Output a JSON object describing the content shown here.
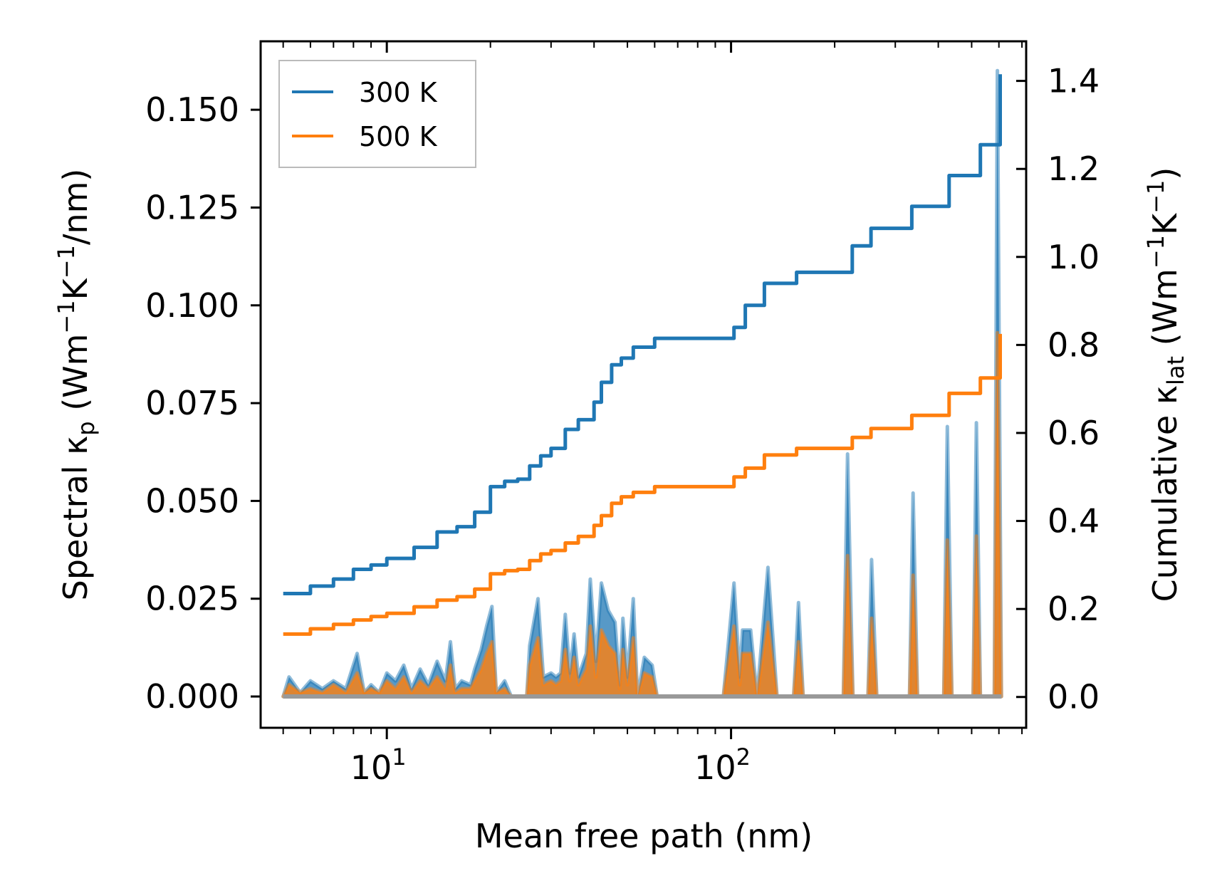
{
  "chart_data": {
    "type": "line",
    "xscale": "log",
    "xlabel": "Mean free path (nm)",
    "ylabel_left": {
      "main": "Spectral κ",
      "sub": "p",
      "unit_pre": " (Wm",
      "sup1": "−1",
      "unit_mid": "K",
      "sup2": "−1",
      "unit_post": "/nm)"
    },
    "ylabel_right": {
      "main": "Cumulative κ",
      "sub": "lat",
      "unit_pre": " (Wm",
      "sup1": "−1",
      "unit_mid": "K",
      "sup2": "−1",
      "unit_post": ")"
    },
    "xlim": [
      4.3,
      720
    ],
    "ylim_left": [
      -0.008,
      0.1675
    ],
    "ylim_right": [
      -0.07,
      1.49
    ],
    "x_ticks": [
      {
        "base": "10",
        "exp": "1",
        "value": 10
      },
      {
        "base": "10",
        "exp": "2",
        "value": 100
      }
    ],
    "y_ticks_left": [
      "0.000",
      "0.025",
      "0.050",
      "0.075",
      "0.100",
      "0.125",
      "0.150"
    ],
    "y_ticks_left_values": [
      0,
      0.025,
      0.05,
      0.075,
      0.1,
      0.125,
      0.15
    ],
    "y_ticks_right": [
      "0.0",
      "0.2",
      "0.4",
      "0.6",
      "0.8",
      "1.0",
      "1.2",
      "1.4"
    ],
    "y_ticks_right_values": [
      0,
      0.2,
      0.4,
      0.6,
      0.8,
      1.0,
      1.2,
      1.4
    ],
    "legend": {
      "position": "upper-left",
      "entries": [
        "300 K",
        "500 K"
      ]
    },
    "colors": {
      "300K": "#1f77b4",
      "500K": "#ff7f0e",
      "fill_300K": "#1f77b4",
      "fill_500K": "#ff7f0e",
      "base": "#999999"
    },
    "series": [
      {
        "name": "300 K",
        "axis": "right",
        "kind": "cumulative",
        "points": [
          [
            5.0,
            0.235
          ],
          [
            6.0,
            0.252
          ],
          [
            7.0,
            0.268
          ],
          [
            8.0,
            0.29
          ],
          [
            9.0,
            0.3
          ],
          [
            10.0,
            0.315
          ],
          [
            12.0,
            0.34
          ],
          [
            14.0,
            0.375
          ],
          [
            16.0,
            0.387
          ],
          [
            18.0,
            0.42
          ],
          [
            20.0,
            0.478
          ],
          [
            22.0,
            0.49
          ],
          [
            24.0,
            0.495
          ],
          [
            26.0,
            0.525
          ],
          [
            28.0,
            0.548
          ],
          [
            30.0,
            0.565
          ],
          [
            33.0,
            0.608
          ],
          [
            36.0,
            0.63
          ],
          [
            40.0,
            0.67
          ],
          [
            42.0,
            0.715
          ],
          [
            45.0,
            0.755
          ],
          [
            48.0,
            0.77
          ],
          [
            52.0,
            0.795
          ],
          [
            60.0,
            0.815
          ],
          [
            80.0,
            0.815
          ],
          [
            98.0,
            0.815
          ],
          [
            102.0,
            0.84
          ],
          [
            110.0,
            0.89
          ],
          [
            125.0,
            0.94
          ],
          [
            155.0,
            0.965
          ],
          [
            215.0,
            0.965
          ],
          [
            225.0,
            1.025
          ],
          [
            255.0,
            1.065
          ],
          [
            335.0,
            1.115
          ],
          [
            430.0,
            1.185
          ],
          [
            530.0,
            1.255
          ],
          [
            580.0,
            1.255
          ],
          [
            605.0,
            1.415
          ]
        ]
      },
      {
        "name": "500 K",
        "axis": "right",
        "kind": "cumulative",
        "points": [
          [
            5.0,
            0.143
          ],
          [
            6.0,
            0.155
          ],
          [
            7.0,
            0.165
          ],
          [
            8.0,
            0.175
          ],
          [
            9.0,
            0.183
          ],
          [
            10.0,
            0.19
          ],
          [
            12.0,
            0.205
          ],
          [
            14.0,
            0.22
          ],
          [
            16.0,
            0.228
          ],
          [
            18.0,
            0.245
          ],
          [
            20.0,
            0.28
          ],
          [
            22.0,
            0.287
          ],
          [
            24.0,
            0.29
          ],
          [
            26.0,
            0.31
          ],
          [
            28.0,
            0.325
          ],
          [
            30.0,
            0.333
          ],
          [
            33.0,
            0.35
          ],
          [
            36.0,
            0.365
          ],
          [
            40.0,
            0.39
          ],
          [
            42.0,
            0.412
          ],
          [
            45.0,
            0.44
          ],
          [
            48.0,
            0.455
          ],
          [
            52.0,
            0.465
          ],
          [
            60.0,
            0.478
          ],
          [
            80.0,
            0.478
          ],
          [
            98.0,
            0.478
          ],
          [
            102.0,
            0.5
          ],
          [
            110.0,
            0.52
          ],
          [
            125.0,
            0.55
          ],
          [
            155.0,
            0.565
          ],
          [
            215.0,
            0.565
          ],
          [
            225.0,
            0.59
          ],
          [
            255.0,
            0.61
          ],
          [
            335.0,
            0.64
          ],
          [
            430.0,
            0.69
          ],
          [
            530.0,
            0.725
          ],
          [
            580.0,
            0.725
          ],
          [
            605.0,
            0.825
          ]
        ]
      },
      {
        "name": "300 K spectral",
        "axis": "left",
        "kind": "spectral-fill",
        "points": [
          [
            5.0,
            0.0
          ],
          [
            5.2,
            0.005
          ],
          [
            5.6,
            0.001
          ],
          [
            6.0,
            0.004
          ],
          [
            6.5,
            0.002
          ],
          [
            7.0,
            0.004
          ],
          [
            7.6,
            0.002
          ],
          [
            8.2,
            0.011
          ],
          [
            8.6,
            0.001
          ],
          [
            9.0,
            0.003
          ],
          [
            9.5,
            0.001
          ],
          [
            10.0,
            0.006
          ],
          [
            10.6,
            0.004
          ],
          [
            11.2,
            0.008
          ],
          [
            11.8,
            0.002
          ],
          [
            12.5,
            0.007
          ],
          [
            13.2,
            0.003
          ],
          [
            14.0,
            0.009
          ],
          [
            14.8,
            0.004
          ],
          [
            15.3,
            0.014
          ],
          [
            15.8,
            0.002
          ],
          [
            16.5,
            0.004
          ],
          [
            17.5,
            0.003
          ],
          [
            18.0,
            0.007
          ],
          [
            18.8,
            0.012
          ],
          [
            19.5,
            0.018
          ],
          [
            20.2,
            0.023
          ],
          [
            20.8,
            0.001
          ],
          [
            22.0,
            0.004
          ],
          [
            23.0,
            0.0
          ],
          [
            25.5,
            0.0
          ],
          [
            26.0,
            0.013
          ],
          [
            27.5,
            0.025
          ],
          [
            28.5,
            0.005
          ],
          [
            30.0,
            0.006
          ],
          [
            31.0,
            0.005
          ],
          [
            32.0,
            0.006
          ],
          [
            33.0,
            0.021
          ],
          [
            34.0,
            0.006
          ],
          [
            35.0,
            0.016
          ],
          [
            36.0,
            0.005
          ],
          [
            38.0,
            0.011
          ],
          [
            39.0,
            0.03
          ],
          [
            40.5,
            0.009
          ],
          [
            42.0,
            0.029
          ],
          [
            44.0,
            0.022
          ],
          [
            46.0,
            0.019
          ],
          [
            47.5,
            0.003
          ],
          [
            48.5,
            0.02
          ],
          [
            50.0,
            0.005
          ],
          [
            52.0,
            0.025
          ],
          [
            53.5,
            0.0
          ],
          [
            56.0,
            0.01
          ],
          [
            59.0,
            0.008
          ],
          [
            61.0,
            0.0
          ],
          [
            95.0,
            0.0
          ],
          [
            102.0,
            0.029
          ],
          [
            106.0,
            0.005
          ],
          [
            108.0,
            0.017
          ],
          [
            114.0,
            0.017
          ],
          [
            119.0,
            0.0
          ],
          [
            128.0,
            0.033
          ],
          [
            136.0,
            0.0
          ],
          [
            152.0,
            0.0
          ],
          [
            157.0,
            0.024
          ],
          [
            162.0,
            0.0
          ],
          [
            212.0,
            0.0
          ],
          [
            218.0,
            0.062
          ],
          [
            226.0,
            0.0
          ],
          [
            250.0,
            0.0
          ],
          [
            256.0,
            0.035
          ],
          [
            265.0,
            0.0
          ],
          [
            330.0,
            0.0
          ],
          [
            338.0,
            0.052
          ],
          [
            348.0,
            0.0
          ],
          [
            415.0,
            0.0
          ],
          [
            425.0,
            0.069
          ],
          [
            438.0,
            0.0
          ],
          [
            505.0,
            0.0
          ],
          [
            516.0,
            0.07
          ],
          [
            530.0,
            0.0
          ],
          [
            582.0,
            0.0
          ],
          [
            594.0,
            0.16
          ],
          [
            610.0,
            0.0
          ]
        ]
      },
      {
        "name": "500 K spectral",
        "axis": "left",
        "kind": "spectral-fill",
        "points": [
          [
            5.0,
            0.0
          ],
          [
            5.2,
            0.003
          ],
          [
            5.6,
            0.001
          ],
          [
            6.0,
            0.002
          ],
          [
            6.5,
            0.001
          ],
          [
            7.0,
            0.003
          ],
          [
            7.6,
            0.001
          ],
          [
            8.2,
            0.006
          ],
          [
            8.6,
            0.001
          ],
          [
            9.0,
            0.002
          ],
          [
            9.5,
            0.001
          ],
          [
            10.0,
            0.004
          ],
          [
            10.6,
            0.002
          ],
          [
            11.2,
            0.005
          ],
          [
            11.8,
            0.001
          ],
          [
            12.5,
            0.004
          ],
          [
            13.2,
            0.002
          ],
          [
            14.0,
            0.005
          ],
          [
            14.8,
            0.002
          ],
          [
            15.3,
            0.008
          ],
          [
            15.8,
            0.001
          ],
          [
            16.5,
            0.002
          ],
          [
            17.5,
            0.002
          ],
          [
            18.0,
            0.004
          ],
          [
            18.8,
            0.007
          ],
          [
            19.5,
            0.011
          ],
          [
            20.2,
            0.014
          ],
          [
            20.8,
            0.001
          ],
          [
            22.0,
            0.002
          ],
          [
            23.0,
            0.0
          ],
          [
            25.5,
            0.0
          ],
          [
            26.0,
            0.008
          ],
          [
            27.5,
            0.015
          ],
          [
            28.5,
            0.003
          ],
          [
            30.0,
            0.004
          ],
          [
            31.0,
            0.003
          ],
          [
            32.0,
            0.004
          ],
          [
            33.0,
            0.012
          ],
          [
            34.0,
            0.004
          ],
          [
            35.0,
            0.01
          ],
          [
            36.0,
            0.003
          ],
          [
            38.0,
            0.007
          ],
          [
            39.0,
            0.018
          ],
          [
            40.5,
            0.005
          ],
          [
            42.0,
            0.017
          ],
          [
            44.0,
            0.013
          ],
          [
            46.0,
            0.011
          ],
          [
            47.5,
            0.002
          ],
          [
            48.5,
            0.012
          ],
          [
            50.0,
            0.003
          ],
          [
            52.0,
            0.015
          ],
          [
            53.5,
            0.0
          ],
          [
            56.0,
            0.006
          ],
          [
            59.0,
            0.005
          ],
          [
            61.0,
            0.0
          ],
          [
            95.0,
            0.0
          ],
          [
            102.0,
            0.018
          ],
          [
            106.0,
            0.003
          ],
          [
            108.0,
            0.011
          ],
          [
            114.0,
            0.011
          ],
          [
            119.0,
            0.0
          ],
          [
            128.0,
            0.019
          ],
          [
            136.0,
            0.0
          ],
          [
            152.0,
            0.0
          ],
          [
            157.0,
            0.014
          ],
          [
            162.0,
            0.0
          ],
          [
            212.0,
            0.0
          ],
          [
            218.0,
            0.036
          ],
          [
            226.0,
            0.0
          ],
          [
            250.0,
            0.0
          ],
          [
            256.0,
            0.02
          ],
          [
            265.0,
            0.0
          ],
          [
            330.0,
            0.0
          ],
          [
            338.0,
            0.031
          ],
          [
            348.0,
            0.0
          ],
          [
            415.0,
            0.0
          ],
          [
            425.0,
            0.04
          ],
          [
            438.0,
            0.0
          ],
          [
            505.0,
            0.0
          ],
          [
            516.0,
            0.041
          ],
          [
            530.0,
            0.0
          ],
          [
            582.0,
            0.0
          ],
          [
            594.0,
            0.093
          ],
          [
            610.0,
            0.0
          ]
        ]
      }
    ]
  }
}
